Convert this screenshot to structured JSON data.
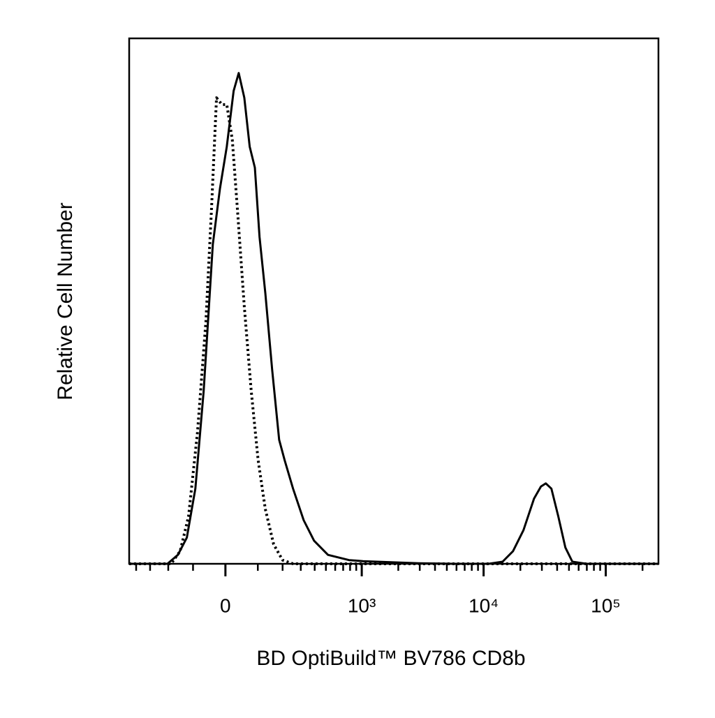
{
  "chart_data": {
    "type": "line",
    "xlabel": "BD OptiBuild™ BV786 CD8b",
    "ylabel": "Relative Cell Number",
    "xscale": "biexponential",
    "xlim": [
      -460,
      270000
    ],
    "ylim": [
      0,
      100
    ],
    "xticks": [
      0,
      {
        "value": 1000,
        "label": "10³"
      },
      {
        "value": 10000,
        "label": "10⁴"
      },
      {
        "value": 100000,
        "label": "10⁵"
      }
    ],
    "xminorticks": [
      -400,
      -300,
      -200,
      -100,
      100,
      200,
      300,
      400,
      500,
      600,
      700,
      800,
      900,
      2000,
      3000,
      4000,
      5000,
      6000,
      7000,
      8000,
      9000,
      20000,
      30000,
      40000,
      50000,
      60000,
      70000,
      80000,
      90000,
      200000
    ],
    "series": [
      {
        "color": "#000000",
        "dash": "solid",
        "x": [
          -460,
          -204,
          -157,
          -122,
          -92,
          -65,
          -37,
          -16,
          4,
          24,
          39,
          56,
          73,
          90,
          106,
          127,
          154,
          184,
          210,
          254,
          319,
          395,
          521,
          784,
          1023,
          1737,
          2945,
          5690,
          10990,
          14300,
          17400,
          21200,
          25850,
          29460,
          32300,
          35900,
          40900,
          46700,
          53250,
          69300,
          270000
        ],
        "y": [
          0,
          0,
          1.7,
          5.0,
          14.3,
          32.9,
          60.8,
          71.4,
          79.4,
          90.0,
          93.4,
          88.7,
          79.4,
          75.4,
          62.2,
          51.5,
          36.9,
          23.6,
          19.7,
          14.3,
          8.3,
          4.4,
          1.7,
          0.7,
          0.5,
          0.3,
          0.1,
          0,
          0,
          0.4,
          2.4,
          6.4,
          12.4,
          14.7,
          15.3,
          14.3,
          9.0,
          3.1,
          0.4,
          0,
          0
        ]
      },
      {
        "color": "#000000",
        "dash": "dotted",
        "x": [
          -460,
          -187,
          -148,
          -116,
          -85,
          -58,
          -41,
          -26,
          -10,
          4,
          20,
          35,
          56,
          78,
          101,
          127,
          160,
          200,
          254,
          270000
        ],
        "y": [
          0,
          0,
          2.4,
          9.0,
          25.0,
          46.2,
          67.5,
          88.7,
          87.4,
          87.4,
          80.7,
          67.5,
          48.9,
          32.9,
          19.7,
          10.4,
          3.7,
          0.7,
          0,
          0
        ]
      }
    ]
  }
}
